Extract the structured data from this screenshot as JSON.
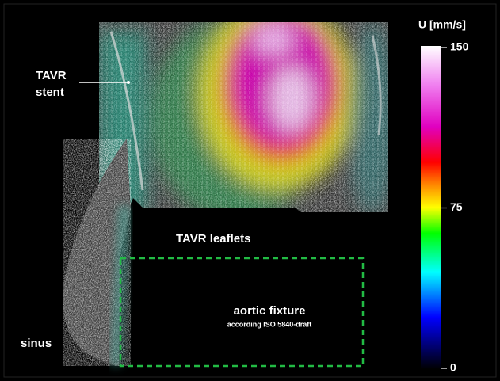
{
  "annotations": {
    "stent": [
      "TAVR",
      "stent"
    ],
    "leaflets": "TAVR leaflets",
    "fixture": "aortic fixture",
    "fixture_note": "according ISO 5840-draft",
    "sinus": "sinus"
  },
  "colorbar": {
    "label": "U [mm/s]",
    "lim": [
      0,
      150
    ],
    "ticks": [
      0,
      75,
      150
    ]
  }
}
